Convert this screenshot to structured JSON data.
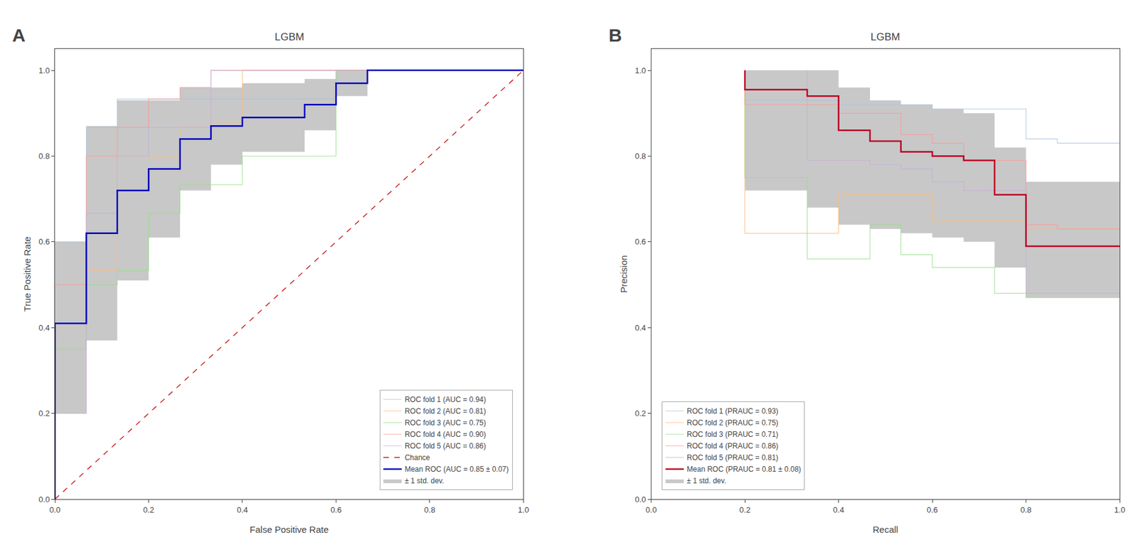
{
  "chart_data": [
    {
      "type": "line",
      "title": "LGBM",
      "xlabel": "False Positive Rate",
      "ylabel": "True Positive Rate",
      "annotations": [
        "A"
      ],
      "xlim": [
        0.0,
        1.0
      ],
      "ylim": [
        0.0,
        1.05
      ],
      "xticks": [
        {
          "value": 0,
          "label": "0.0"
        },
        0.2,
        0.4,
        0.6,
        0.8,
        {
          "value": 1,
          "label": "1.0"
        }
      ],
      "yticks": [
        {
          "value": 0,
          "label": "0.0"
        },
        0.2,
        0.4,
        0.6,
        0.8,
        {
          "value": 1,
          "label": "1.0"
        }
      ],
      "grid": false,
      "legend": "lower right",
      "series": [
        {
          "name": "ROC fold 1 (AUC = 0.94)",
          "color": "#a8c4e0",
          "line_style": "solid",
          "x": [
            0.0,
            0.0,
            0.067,
            0.067,
            0.133,
            0.133,
            0.2,
            0.2,
            0.267,
            0.267,
            0.333,
            0.333,
            0.6,
            0.6,
            0.667,
            0.667,
            1.0
          ],
          "values": [
            0.0,
            0.6,
            0.6,
            0.867,
            0.867,
            0.933,
            0.933,
            0.933,
            0.933,
            0.933,
            0.933,
            0.933,
            0.933,
            1.0,
            1.0,
            1.0,
            1.0
          ]
        },
        {
          "name": "ROC fold 2 (AUC = 0.81)",
          "color": "#ffbb78",
          "line_style": "solid",
          "x": [
            0.0,
            0.0,
            0.067,
            0.067,
            0.133,
            0.133,
            0.267,
            0.267,
            0.333,
            0.333,
            0.4,
            0.4,
            1.0
          ],
          "values": [
            0.0,
            0.4,
            0.4,
            0.533,
            0.533,
            0.8,
            0.8,
            0.867,
            0.867,
            0.88,
            0.88,
            1.0,
            1.0
          ]
        },
        {
          "name": "ROC fold 3 (AUC = 0.75)",
          "color": "#98df8a",
          "line_style": "solid",
          "x": [
            0.0,
            0.0,
            0.067,
            0.067,
            0.133,
            0.133,
            0.2,
            0.2,
            0.267,
            0.267,
            0.4,
            0.4,
            0.6,
            0.6,
            1.0
          ],
          "values": [
            0.0,
            0.35,
            0.35,
            0.5,
            0.5,
            0.533,
            0.533,
            0.667,
            0.667,
            0.733,
            0.733,
            0.8,
            0.8,
            1.0,
            1.0
          ]
        },
        {
          "name": "ROC fold 4 (AUC = 0.90)",
          "color": "#ff9896",
          "line_style": "solid",
          "x": [
            0.0,
            0.0,
            0.067,
            0.067,
            0.133,
            0.133,
            0.2,
            0.2,
            0.267,
            0.267,
            0.333,
            0.333,
            1.0
          ],
          "values": [
            0.0,
            0.5,
            0.5,
            0.8,
            0.8,
            0.867,
            0.867,
            0.933,
            0.933,
            0.96,
            0.96,
            1.0,
            1.0
          ]
        },
        {
          "name": "ROC fold 5 (AUC = 0.86)",
          "color": "#c5b0d5",
          "line_style": "solid",
          "x": [
            0.0,
            0.0,
            0.067,
            0.067,
            0.133,
            0.133,
            0.2,
            0.2,
            0.333,
            0.333,
            1.0
          ],
          "values": [
            0.0,
            0.2,
            0.2,
            0.667,
            0.667,
            0.8,
            0.8,
            0.867,
            0.867,
            1.0,
            1.0
          ]
        },
        {
          "name": "Chance",
          "color": "#cc2222",
          "line_style": "dashed",
          "x": [
            0,
            1
          ],
          "values": [
            0,
            1
          ]
        },
        {
          "name": "Mean ROC (AUC = 0.85 ± 0.07)",
          "color": "#0000bb",
          "line_style": "solid",
          "x": [
            0.0,
            0.0,
            0.067,
            0.067,
            0.133,
            0.133,
            0.2,
            0.2,
            0.267,
            0.267,
            0.333,
            0.333,
            0.4,
            0.4,
            0.533,
            0.533,
            0.6,
            0.6,
            0.667,
            0.667,
            1.0
          ],
          "values": [
            0.0,
            0.41,
            0.41,
            0.62,
            0.62,
            0.72,
            0.72,
            0.77,
            0.77,
            0.84,
            0.84,
            0.87,
            0.87,
            0.89,
            0.89,
            0.92,
            0.92,
            0.97,
            0.97,
            1.0,
            1.0
          ]
        },
        {
          "name": "± 1 std. dev.",
          "type": "band",
          "color": "#c8c8c8",
          "x": [
            0.0,
            0.0,
            0.067,
            0.067,
            0.133,
            0.133,
            0.2,
            0.2,
            0.267,
            0.267,
            0.333,
            0.333,
            0.4,
            0.4,
            0.533,
            0.533,
            0.6,
            0.6,
            0.667,
            0.667,
            1.0
          ],
          "lower": [
            0.0,
            0.2,
            0.2,
            0.37,
            0.37,
            0.51,
            0.51,
            0.61,
            0.61,
            0.72,
            0.72,
            0.78,
            0.78,
            0.81,
            0.81,
            0.86,
            0.86,
            0.94,
            0.94,
            1.0,
            1.0
          ],
          "upper": [
            0.0,
            0.6,
            0.6,
            0.87,
            0.87,
            0.93,
            0.93,
            0.93,
            0.93,
            0.96,
            0.96,
            0.96,
            0.96,
            0.97,
            0.97,
            0.98,
            0.98,
            1.0,
            1.0,
            1.0,
            1.0
          ]
        }
      ]
    },
    {
      "type": "line",
      "title": "LGBM",
      "xlabel": "Recall",
      "ylabel": "Precision",
      "annotations": [
        "B"
      ],
      "xlim": [
        0.0,
        1.0
      ],
      "ylim": [
        0.0,
        1.05
      ],
      "xticks": [
        {
          "value": 0,
          "label": "0.0"
        },
        0.2,
        0.4,
        0.6,
        0.8,
        {
          "value": 1,
          "label": "1.0"
        }
      ],
      "yticks": [
        {
          "value": 0,
          "label": "0.0"
        },
        0.2,
        0.4,
        0.6,
        0.8,
        {
          "value": 1,
          "label": "1.0"
        }
      ],
      "grid": false,
      "legend": "lower left",
      "series": [
        {
          "name": "ROC fold 1 (PRAUC = 0.93)",
          "color": "#a8c4e0",
          "line_style": "solid",
          "x": [
            0.2,
            0.2,
            0.4,
            0.4,
            0.6,
            0.6,
            0.8,
            0.8,
            0.867,
            0.867,
            1.0,
            1.0
          ],
          "values": [
            1.0,
            0.93,
            0.93,
            0.92,
            0.92,
            0.91,
            0.91,
            0.84,
            0.84,
            0.83,
            0.83,
            0.83
          ]
        },
        {
          "name": "ROC fold 2 (PRAUC = 0.75)",
          "color": "#ffbb78",
          "line_style": "solid",
          "x": [
            0.2,
            0.2,
            0.4,
            0.4,
            0.6,
            0.6,
            0.8,
            0.8,
            1.0,
            1.0
          ],
          "values": [
            1.0,
            0.62,
            0.62,
            0.71,
            0.71,
            0.65,
            0.65,
            0.63,
            0.63,
            0.63
          ]
        },
        {
          "name": "ROC fold 3 (PRAUC = 0.71)",
          "color": "#98df8a",
          "line_style": "solid",
          "x": [
            0.2,
            0.2,
            0.333,
            0.333,
            0.467,
            0.467,
            0.533,
            0.533,
            0.6,
            0.6,
            0.733,
            0.733,
            0.8,
            0.8,
            1.0,
            1.0
          ],
          "values": [
            1.0,
            0.75,
            0.75,
            0.56,
            0.56,
            0.64,
            0.64,
            0.57,
            0.57,
            0.54,
            0.54,
            0.48,
            0.48,
            0.47,
            0.47,
            0.47
          ]
        },
        {
          "name": "ROC fold 4 (PRAUC = 0.86)",
          "color": "#ff9896",
          "line_style": "solid",
          "x": [
            0.2,
            0.2,
            0.4,
            0.4,
            0.533,
            0.533,
            0.6,
            0.6,
            0.667,
            0.667,
            0.8,
            0.8,
            0.867,
            0.867,
            1.0,
            1.0
          ],
          "values": [
            1.0,
            0.92,
            0.92,
            0.9,
            0.9,
            0.85,
            0.85,
            0.83,
            0.83,
            0.79,
            0.79,
            0.64,
            0.64,
            0.63,
            0.63,
            0.63
          ]
        },
        {
          "name": "ROC fold 5 (PRAUC = 0.81)",
          "color": "#c5b0d5",
          "line_style": "solid",
          "x": [
            0.333,
            0.333,
            0.467,
            0.467,
            0.533,
            0.533,
            0.6,
            0.6,
            0.667,
            0.667,
            0.8,
            0.8,
            1.0,
            1.0
          ],
          "values": [
            1.0,
            0.79,
            0.79,
            0.78,
            0.78,
            0.77,
            0.77,
            0.74,
            0.74,
            0.72,
            0.72,
            0.48,
            0.48,
            0.48
          ]
        },
        {
          "name": "Mean ROC (PRAUC = 0.81 ± 0.08)",
          "color": "#bb0022",
          "line_style": "solid",
          "x": [
            0.2,
            0.2,
            0.333,
            0.333,
            0.4,
            0.4,
            0.467,
            0.467,
            0.533,
            0.533,
            0.6,
            0.6,
            0.667,
            0.667,
            0.733,
            0.733,
            0.8,
            0.8,
            0.867,
            0.867,
            1.0,
            1.0
          ],
          "values": [
            1.0,
            0.955,
            0.955,
            0.94,
            0.94,
            0.86,
            0.86,
            0.835,
            0.835,
            0.81,
            0.81,
            0.8,
            0.8,
            0.79,
            0.79,
            0.71,
            0.71,
            0.59,
            0.59,
            0.59,
            0.59,
            0.59
          ]
        },
        {
          "name": "± 1 std. dev.",
          "type": "band",
          "color": "#c8c8c8",
          "x": [
            0.2,
            0.2,
            0.333,
            0.333,
            0.4,
            0.4,
            0.467,
            0.467,
            0.533,
            0.533,
            0.6,
            0.6,
            0.667,
            0.667,
            0.733,
            0.733,
            0.8,
            0.8,
            0.867,
            0.867,
            1.0,
            1.0
          ],
          "lower": [
            0.75,
            0.72,
            0.72,
            0.68,
            0.68,
            0.64,
            0.64,
            0.63,
            0.63,
            0.62,
            0.62,
            0.61,
            0.61,
            0.6,
            0.6,
            0.54,
            0.54,
            0.47,
            0.47,
            0.47,
            0.47,
            0.47
          ],
          "upper": [
            1.0,
            1.0,
            1.0,
            1.0,
            1.0,
            0.96,
            0.96,
            0.93,
            0.93,
            0.92,
            0.92,
            0.91,
            0.91,
            0.9,
            0.9,
            0.82,
            0.82,
            0.74,
            0.74,
            0.74,
            0.74,
            0.74
          ]
        }
      ]
    }
  ]
}
